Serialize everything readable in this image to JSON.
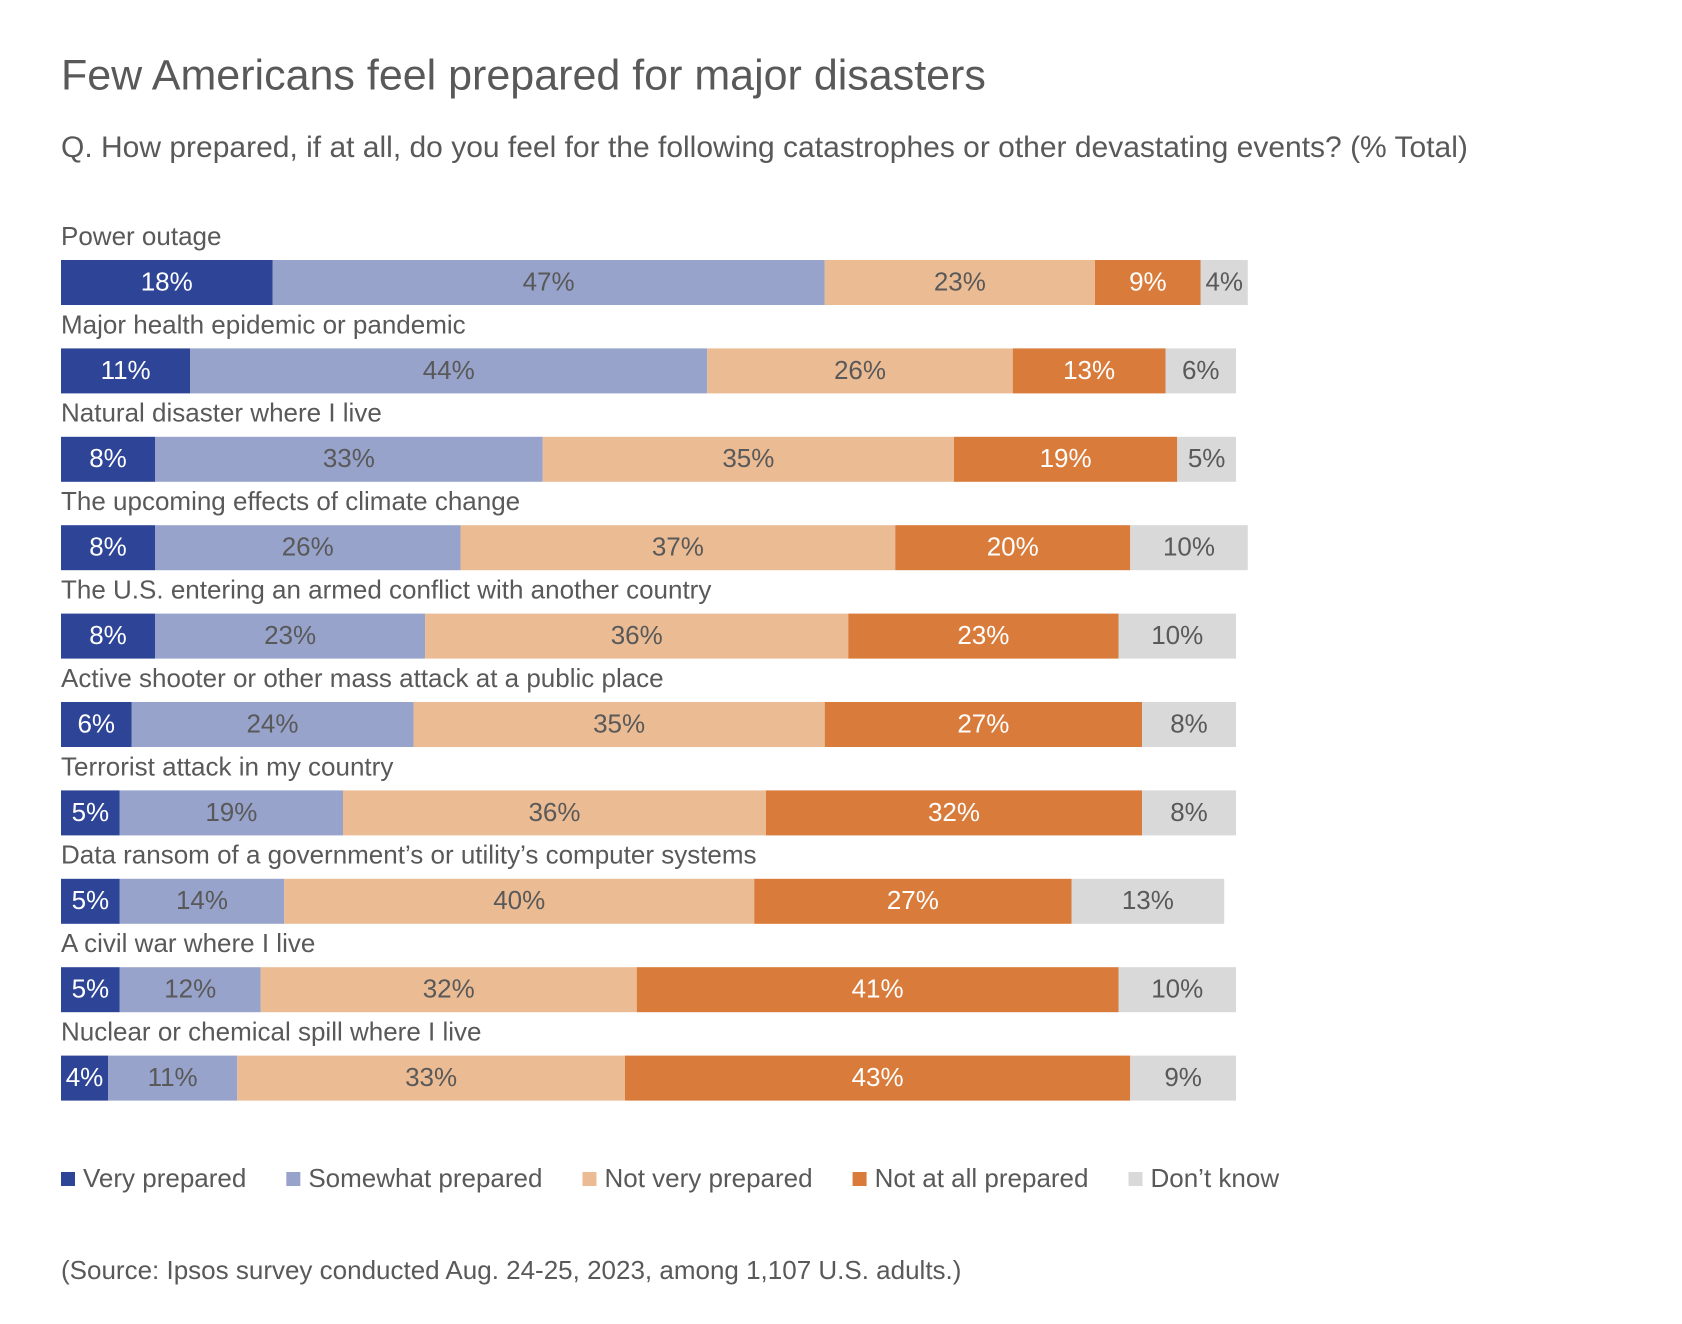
{
  "chart_data": {
    "type": "stacked_barh",
    "title": "Few Americans feel prepared for major disasters",
    "subtitle": "Q. How prepared, if at all, do you feel for the following catastrophes or other devastating events? (% Total)",
    "source": "(Source: Ipsos survey conducted Aug. 24-25, 2023, among 1,107 U.S. adults.)",
    "categories": [
      "Power outage",
      "Major health epidemic or pandemic",
      "Natural disaster where I live",
      "The upcoming effects of climate change",
      "The U.S. entering an armed conflict with another country",
      "Active shooter or other mass attack at a public place",
      "Terrorist attack in my country",
      "Data ransom of a government’s or utility’s computer systems",
      "A civil war where I live",
      "Nuclear or chemical spill where I live"
    ],
    "series": [
      {
        "name": "Very prepared",
        "color": "#2e4597",
        "values": [
          18,
          11,
          8,
          8,
          8,
          6,
          5,
          5,
          5,
          4
        ],
        "value_labels": [
          "18%",
          "11%",
          "8%",
          "8%",
          "8%",
          "6%",
          "5%",
          "5%",
          "5%",
          "4%"
        ]
      },
      {
        "name": "Somewhat prepared",
        "color": "#97a3ca",
        "values": [
          47,
          44,
          33,
          26,
          23,
          24,
          19,
          14,
          12,
          11
        ],
        "value_labels": [
          "47%",
          "44%",
          "33%",
          "26%",
          "23%",
          "24%",
          "19%",
          "14%",
          "12%",
          "11%"
        ]
      },
      {
        "name": "Not very prepared",
        "color": "#ebbc94",
        "values": [
          23,
          26,
          35,
          37,
          36,
          35,
          36,
          40,
          32,
          33
        ],
        "value_labels": [
          "23%",
          "26%",
          "35%",
          "37%",
          "36%",
          "35%",
          "36%",
          "40%",
          "32%",
          "33%"
        ]
      },
      {
        "name": "Not at all prepared",
        "color": "#d97b3a",
        "values": [
          9,
          13,
          19,
          20,
          23,
          27,
          32,
          27,
          41,
          43
        ],
        "value_labels": [
          "9%",
          "13%",
          "19%",
          "20%",
          "23%",
          "27%",
          "32%",
          "27%",
          "41%",
          "43%"
        ]
      },
      {
        "name": "Don’t know",
        "color": "#d9d9d9",
        "values": [
          4,
          6,
          5,
          10,
          10,
          8,
          8,
          13,
          10,
          9
        ],
        "value_labels": [
          "4%",
          "6%",
          "5%",
          "10%",
          "10%",
          "8%",
          "8%",
          "13%",
          "10%",
          "9%"
        ]
      }
    ]
  }
}
